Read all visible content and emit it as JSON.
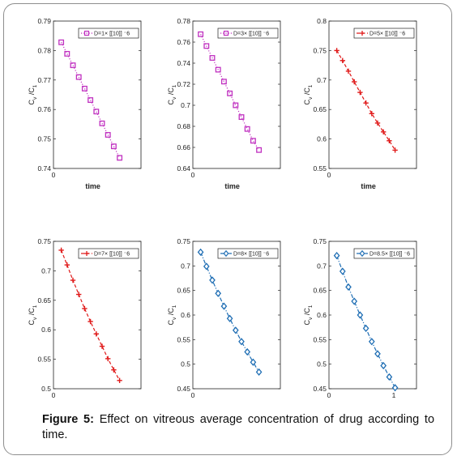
{
  "caption": {
    "label": "Figure 5:",
    "text": "Effect on vitreous average concentration of drug according to time."
  },
  "chart_data": [
    {
      "type": "line",
      "ylabel": "C_v /C_1",
      "xlabel": "time",
      "xlim": [
        0,
        1.35
      ],
      "xticks": [],
      "ylim": [
        0.74,
        0.79
      ],
      "yticks": [
        0.74,
        0.75,
        0.76,
        0.77,
        0.78,
        0.79
      ],
      "ytick_labels": [
        "0.74",
        "0.75",
        "0.76",
        "0.77",
        "0.78",
        "0.79"
      ],
      "series": [
        {
          "name": "D=1× [[10]] ⁻6",
          "color": "#c030c0",
          "line": "dotted",
          "marker": "square",
          "x": [
            0.12,
            0.21,
            0.3,
            0.39,
            0.48,
            0.57,
            0.66,
            0.75,
            0.84,
            0.93,
            1.02
          ],
          "y": [
            0.7828,
            0.7789,
            0.775,
            0.771,
            0.7671,
            0.7632,
            0.7593,
            0.7553,
            0.7514,
            0.7475,
            0.7436
          ]
        }
      ]
    },
    {
      "type": "line",
      "ylabel": "C_v /C_1",
      "xlabel": "time",
      "xlim": [
        0,
        1.35
      ],
      "xticks": [],
      "ylim": [
        0.64,
        0.78
      ],
      "yticks": [
        0.64,
        0.66,
        0.68,
        0.7,
        0.72,
        0.74,
        0.76,
        0.78
      ],
      "ytick_labels": [
        "0.64",
        "0.66",
        "0.68",
        "0.7",
        "0.72",
        "0.74",
        "0.76",
        "0.78"
      ],
      "series": [
        {
          "name": "D=3× [[10]] ⁻6",
          "color": "#c030c0",
          "line": "dotted",
          "marker": "square",
          "x": [
            0.12,
            0.21,
            0.3,
            0.39,
            0.48,
            0.57,
            0.66,
            0.75,
            0.84,
            0.93,
            1.02
          ],
          "y": [
            0.7675,
            0.7563,
            0.745,
            0.7338,
            0.7225,
            0.7113,
            0.7,
            0.6888,
            0.6775,
            0.6663,
            0.6575
          ]
        }
      ]
    },
    {
      "type": "line",
      "ylabel": "C_v /C_1",
      "xlabel": "time",
      "xlim": [
        0,
        1.35
      ],
      "xticks": [],
      "ylim": [
        0.55,
        0.8
      ],
      "yticks": [
        0.55,
        0.6,
        0.65,
        0.7,
        0.75,
        0.8
      ],
      "ytick_labels": [
        "0.55",
        "0.6",
        "0.65",
        "0.7",
        "0.75",
        "0.8"
      ],
      "series": [
        {
          "name": "D=5× [[10]] ⁻6",
          "color": "#e01a1a",
          "line": "dashed",
          "marker": "plus",
          "x": [
            0.12,
            0.21,
            0.3,
            0.39,
            0.48,
            0.57,
            0.66,
            0.75,
            0.84,
            0.93,
            1.02
          ],
          "y": [
            0.75,
            0.733,
            0.715,
            0.697,
            0.679,
            0.661,
            0.643,
            0.627,
            0.612,
            0.597,
            0.581
          ]
        }
      ]
    },
    {
      "type": "line",
      "ylabel": "C_v /C_1",
      "xlabel": "",
      "xlim": [
        0,
        1.35
      ],
      "xticks": [],
      "ylim": [
        0.5,
        0.75
      ],
      "yticks": [
        0.5,
        0.55,
        0.6,
        0.65,
        0.7,
        0.75
      ],
      "ytick_labels": [
        "0.5",
        "0.55",
        "0.6",
        "0.65",
        "0.7",
        "0.75"
      ],
      "series": [
        {
          "name": "D=7× [[10]] ⁻6",
          "color": "#e01a1a",
          "line": "dashed",
          "marker": "plus",
          "x": [
            0.12,
            0.21,
            0.3,
            0.39,
            0.48,
            0.57,
            0.66,
            0.75,
            0.84,
            0.93,
            1.02
          ],
          "y": [
            0.735,
            0.71,
            0.684,
            0.66,
            0.636,
            0.614,
            0.593,
            0.572,
            0.551,
            0.532,
            0.514
          ]
        }
      ]
    },
    {
      "type": "line",
      "ylabel": "C_v /C_1",
      "xlabel": "",
      "xlim": [
        0,
        1.35
      ],
      "xticks": [],
      "ylim": [
        0.45,
        0.75
      ],
      "yticks": [
        0.45,
        0.5,
        0.55,
        0.6,
        0.65,
        0.7,
        0.75
      ],
      "ytick_labels": [
        "0.45",
        "0.5",
        "0.55",
        "0.6",
        "0.65",
        "0.7",
        "0.75"
      ],
      "series": [
        {
          "name": "D=8× [[10]] ⁻6",
          "color": "#1f6eb4",
          "line": "dash-dot",
          "marker": "diamond",
          "x": [
            0.12,
            0.21,
            0.3,
            0.39,
            0.48,
            0.57,
            0.66,
            0.75,
            0.84,
            0.93,
            1.02
          ],
          "y": [
            0.728,
            0.699,
            0.671,
            0.644,
            0.618,
            0.593,
            0.569,
            0.546,
            0.525,
            0.504,
            0.484
          ]
        }
      ]
    },
    {
      "type": "line",
      "ylabel": "C_v /C_1",
      "xlabel": "",
      "xlim": [
        0,
        1.35
      ],
      "xticks": [
        1
      ],
      "xtick_labels": [
        "1"
      ],
      "ylim": [
        0.45,
        0.75
      ],
      "yticks": [
        0.45,
        0.5,
        0.55,
        0.6,
        0.65,
        0.7,
        0.75
      ],
      "ytick_labels": [
        "0.45",
        "0.5",
        "0.55",
        "0.6",
        "0.65",
        "0.7",
        "0.75"
      ],
      "series": [
        {
          "name": "D=8.5× [[10]] ⁻6",
          "color": "#1f6eb4",
          "line": "dash-dot",
          "marker": "diamond",
          "x": [
            0.12,
            0.21,
            0.3,
            0.39,
            0.48,
            0.57,
            0.66,
            0.75,
            0.84,
            0.93,
            1.02
          ],
          "y": [
            0.721,
            0.689,
            0.657,
            0.628,
            0.6,
            0.573,
            0.546,
            0.521,
            0.497,
            0.474,
            0.452
          ]
        }
      ]
    }
  ]
}
